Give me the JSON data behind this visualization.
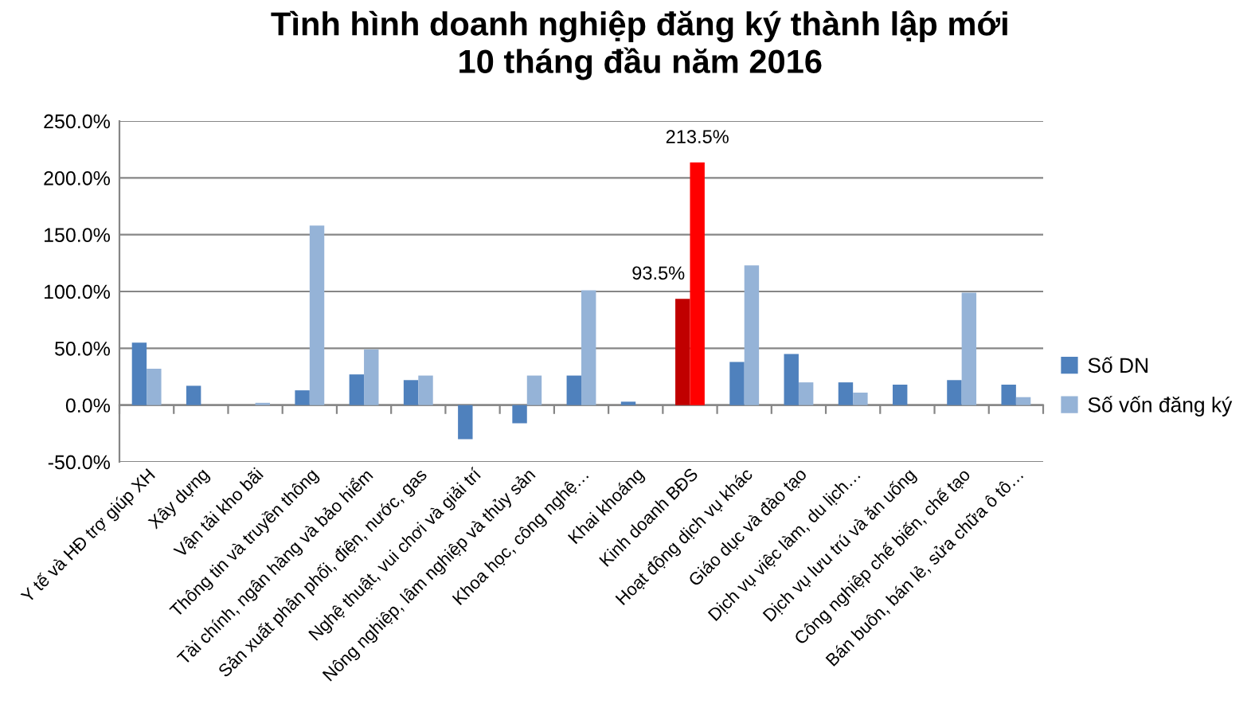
{
  "chart_data": {
    "type": "bar",
    "title": "Tình hình doanh nghiệp đăng ký thành lập mới\n10 tháng đầu năm 2016",
    "categories": [
      "Y tế và HĐ trợ giúp XH",
      "Xây dựng",
      "Vận tải kho bãi",
      "Thông tin và truyền thông",
      "Tài chính, ngân hàng và bảo hiểm",
      "Sản xuất phân phối, điện, nước, gas",
      "Nghệ thuật, vui chơi và giải trí",
      "Nông nghiệp, lâm nghiệp và thủy sản",
      "Khoa học, công nghệ…",
      "Khai khoáng",
      "Kinh doanh BĐS",
      "Hoạt động dịch vụ khác",
      "Giáo dục và đào tạo",
      "Dịch vụ việc làm, du lịch…",
      "Dịch vụ lưu trú và ăn uống",
      "Công nghiệp chế biến, chế tạo",
      "Bán buôn, bán lẻ, sửa chữa ô tô…"
    ],
    "series": [
      {
        "name": "Số DN",
        "color": "#4f81bd",
        "colors": [
          "#4f81bd",
          "#4f81bd",
          "#4f81bd",
          "#4f81bd",
          "#4f81bd",
          "#4f81bd",
          "#4f81bd",
          "#4f81bd",
          "#4f81bd",
          "#4f81bd",
          "#c00000",
          "#4f81bd",
          "#4f81bd",
          "#4f81bd",
          "#4f81bd",
          "#4f81bd",
          "#4f81bd"
        ],
        "values": [
          55,
          17,
          null,
          13,
          27,
          22,
          -30,
          -16,
          26,
          3,
          93.5,
          38,
          45,
          20,
          18,
          22,
          18
        ],
        "value_labels": [
          null,
          null,
          null,
          null,
          null,
          null,
          null,
          null,
          null,
          null,
          "93.5%",
          null,
          null,
          null,
          null,
          null,
          null
        ]
      },
      {
        "name": "Số vốn đăng ký",
        "color": "#95b3d7",
        "colors": [
          "#95b3d7",
          "#95b3d7",
          "#95b3d7",
          "#95b3d7",
          "#95b3d7",
          "#95b3d7",
          "#95b3d7",
          "#95b3d7",
          "#95b3d7",
          "#95b3d7",
          "#ff0000",
          "#95b3d7",
          "#95b3d7",
          "#95b3d7",
          "#95b3d7",
          "#95b3d7",
          "#95b3d7"
        ],
        "values": [
          32,
          null,
          2,
          158,
          49,
          26,
          null,
          26,
          101,
          null,
          213.5,
          123,
          20,
          11,
          null,
          99,
          7
        ],
        "value_labels": [
          null,
          null,
          null,
          null,
          null,
          null,
          null,
          null,
          null,
          null,
          "213.5%",
          null,
          null,
          null,
          null,
          null,
          null
        ]
      }
    ],
    "ylim": [
      -50,
      250
    ],
    "yticks": [
      {
        "value": -50,
        "label": "-50.0%"
      },
      {
        "value": 0,
        "label": "0.0%"
      },
      {
        "value": 50,
        "label": "50.0%"
      },
      {
        "value": 100,
        "label": "100.0%"
      },
      {
        "value": 150,
        "label": "150.0%"
      },
      {
        "value": 200,
        "label": "200.0%"
      },
      {
        "value": 250,
        "label": "250.0%"
      }
    ],
    "grid": "y",
    "legend": "right"
  }
}
